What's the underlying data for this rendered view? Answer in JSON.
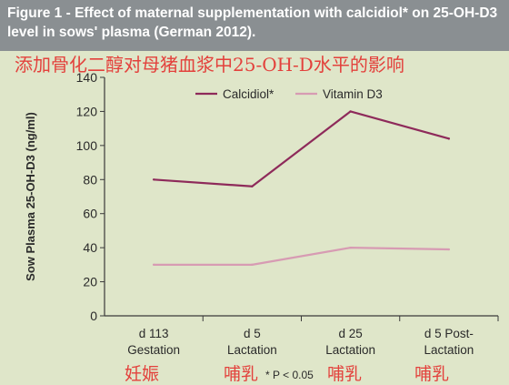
{
  "figure": {
    "title": "Figure 1 - Effect of maternal supplementation with calcidiol* on 25-OH-D3 level in sows' plasma (German 2012).",
    "subtitle_cn": "添加骨化二醇对母猪血浆中25-OH-D水平的影响",
    "footnote": "* P < 0.05"
  },
  "cn_labels": [
    "妊娠",
    "哺乳",
    "哺乳",
    "哺乳"
  ],
  "colors": {
    "header_bg": "#8a8f92",
    "plot_bg": "#dfe6c9",
    "calcidiol": "#8e2a5a",
    "vitamin_d3": "#d79bb3",
    "annotation_red": "#e3413c"
  },
  "chart_data": {
    "type": "line",
    "categories": [
      "d 113 Gestation",
      "d 5 Lactation",
      "d 25 Lactation",
      "d 5 Post-Lactation"
    ],
    "category_lines": [
      [
        "d 113",
        "Gestation"
      ],
      [
        "d 5",
        "Lactation"
      ],
      [
        "d 25",
        "Lactation"
      ],
      [
        "d 5 Post-",
        "Lactation"
      ]
    ],
    "series": [
      {
        "name": "Calcidiol*",
        "values": [
          80,
          76,
          120,
          104
        ],
        "color": "#8e2a5a"
      },
      {
        "name": "Vitamin D3",
        "values": [
          30,
          30,
          40,
          39
        ],
        "color": "#d79bb3"
      }
    ],
    "ylabel": "Sow Plasma 25-OH-D3 (ng/ml)",
    "ylim": [
      0,
      140
    ],
    "yticks": [
      0,
      20,
      40,
      60,
      80,
      100,
      120,
      140
    ],
    "grid": false,
    "legend": "top"
  }
}
